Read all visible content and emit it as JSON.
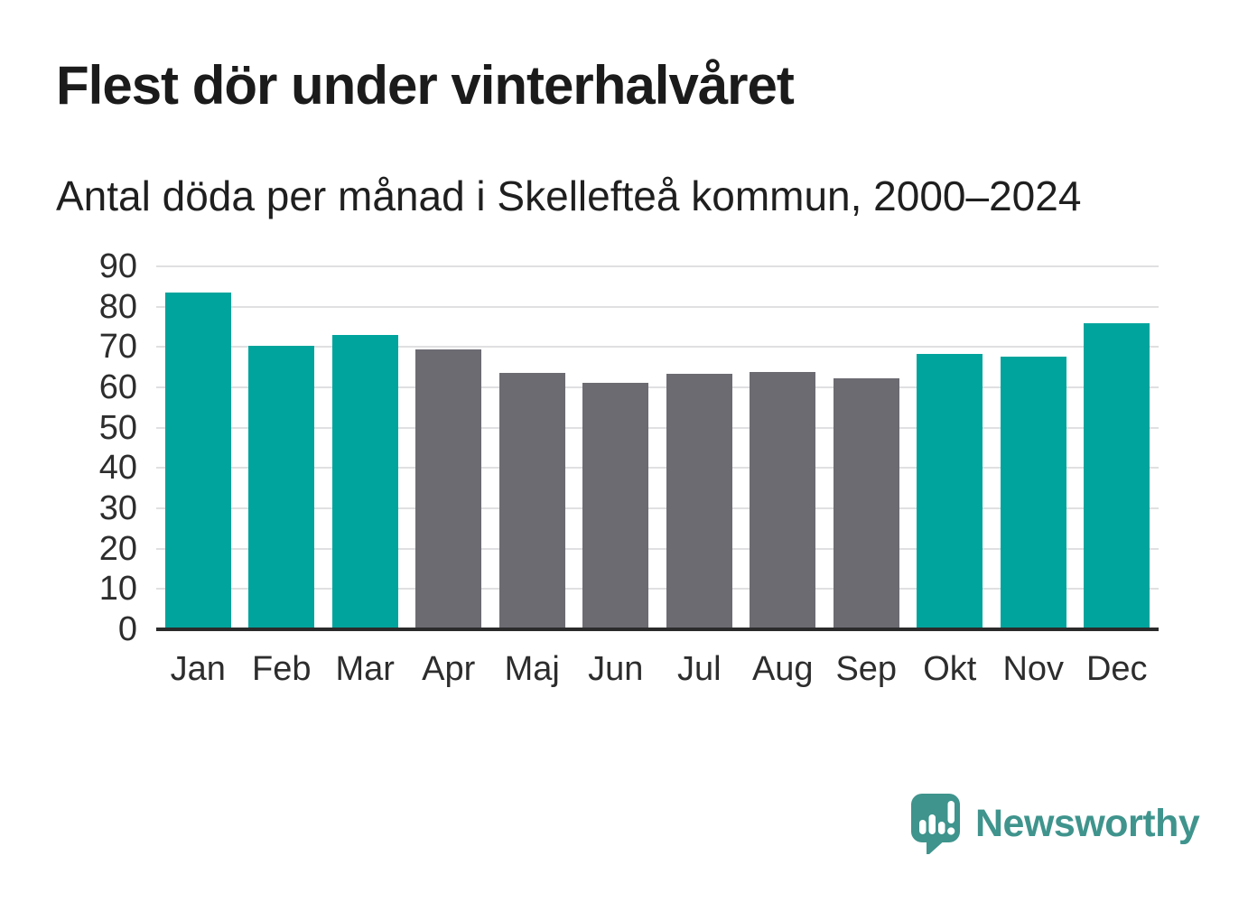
{
  "header": {
    "title": "Flest dör under vinterhalvåret",
    "subtitle": "Antal döda per månad i Skellefteå kommun, 2000–2024"
  },
  "footer": {
    "brand": "Newsworthy",
    "logo_icon": "newsworthy-speech-bubble-bar-chart-icon"
  },
  "colors": {
    "highlight_bar": "#00a49c",
    "muted_bar": "#6c6b72",
    "gridline": "#e0e0e2",
    "axis_line": "#2b2b2b",
    "title_text": "#1b1b1b",
    "subtitle_text": "#1f1f1f",
    "tick_text": "#2d2d2d",
    "logo": "#3f948d"
  },
  "chart_data": {
    "type": "bar",
    "title": "Flest dör under vinterhalvåret",
    "subtitle": "Antal döda per månad i Skellefteå kommun, 2000–2024",
    "categories": [
      "Jan",
      "Feb",
      "Mar",
      "Apr",
      "Maj",
      "Jun",
      "Jul",
      "Aug",
      "Sep",
      "Okt",
      "Nov",
      "Dec"
    ],
    "values": [
      83.5,
      70.2,
      73.0,
      69.5,
      63.5,
      61.2,
      63.3,
      63.8,
      62.2,
      68.2,
      67.6,
      75.8
    ],
    "highlighted": [
      true,
      true,
      true,
      false,
      false,
      false,
      false,
      false,
      false,
      true,
      true,
      true
    ],
    "highlight_meaning": "winter half-year months (teal)",
    "muted_meaning": "summer half-year months (gray)",
    "xlabel": "",
    "ylabel": "",
    "ylim": [
      0,
      90
    ],
    "yticks": [
      0,
      10,
      20,
      30,
      40,
      50,
      60,
      70,
      80,
      90
    ],
    "grid": "horizontal",
    "legend": "none"
  }
}
